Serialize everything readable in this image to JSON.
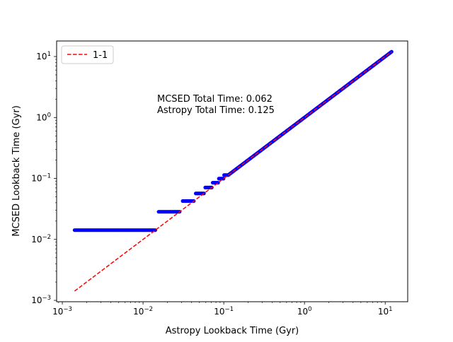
{
  "chart_data": {
    "type": "scatter",
    "title": "",
    "xlabel": "Astropy Lookback Time (Gyr)",
    "ylabel": "MCSED Lookback Time (Gyr)",
    "x_scale": "log",
    "y_scale": "log",
    "xlim": [
      0.00085,
      19
    ],
    "ylim": [
      0.00095,
      18
    ],
    "x_ticks": [
      {
        "value": 0.001,
        "base": "10",
        "exp": "−3"
      },
      {
        "value": 0.01,
        "base": "10",
        "exp": "−2"
      },
      {
        "value": 0.1,
        "base": "10",
        "exp": "−1"
      },
      {
        "value": 1,
        "base": "10",
        "exp": "0"
      },
      {
        "value": 10,
        "base": "10",
        "exp": "1"
      }
    ],
    "y_ticks": [
      {
        "value": 0.001,
        "base": "10",
        "exp": "−3"
      },
      {
        "value": 0.01,
        "base": "10",
        "exp": "−2"
      },
      {
        "value": 0.1,
        "base": "10",
        "exp": "−1"
      },
      {
        "value": 1,
        "base": "10",
        "exp": "0"
      },
      {
        "value": 10,
        "base": "10",
        "exp": "1"
      }
    ],
    "grid": false,
    "legend": {
      "position": "top-left",
      "entries": [
        {
          "label": "1-1",
          "color": "#ff0000",
          "style": "dashed"
        }
      ]
    },
    "annotations": [
      "MCSED Total Time: 0.062",
      "Astropy Total Time: 0.125"
    ],
    "series": [
      {
        "marker_color": "#0000ff",
        "plateaus": [
          {
            "y": 0.0142,
            "x_start": 0.00142,
            "x_end": 0.0142
          },
          {
            "y": 0.0284,
            "x_start": 0.0156,
            "x_end": 0.0284
          },
          {
            "y": 0.0426,
            "x_start": 0.031,
            "x_end": 0.0426
          },
          {
            "y": 0.0568,
            "x_start": 0.045,
            "x_end": 0.0568
          },
          {
            "y": 0.071,
            "x_start": 0.059,
            "x_end": 0.071
          },
          {
            "y": 0.0852,
            "x_start": 0.073,
            "x_end": 0.0852
          },
          {
            "y": 0.0994,
            "x_start": 0.087,
            "x_end": 0.0994
          },
          {
            "y": 0.1136,
            "x_start": 0.101,
            "x_end": 0.1136
          }
        ],
        "continuous": {
          "x_start": 0.115,
          "x_end": 12.0,
          "relation": "y = x"
        }
      },
      {
        "name": "1-1",
        "line_color": "#ff0000",
        "line_style": "dashed",
        "x": [
          0.00142,
          12.0
        ],
        "y": [
          0.00142,
          12.0
        ]
      }
    ]
  }
}
